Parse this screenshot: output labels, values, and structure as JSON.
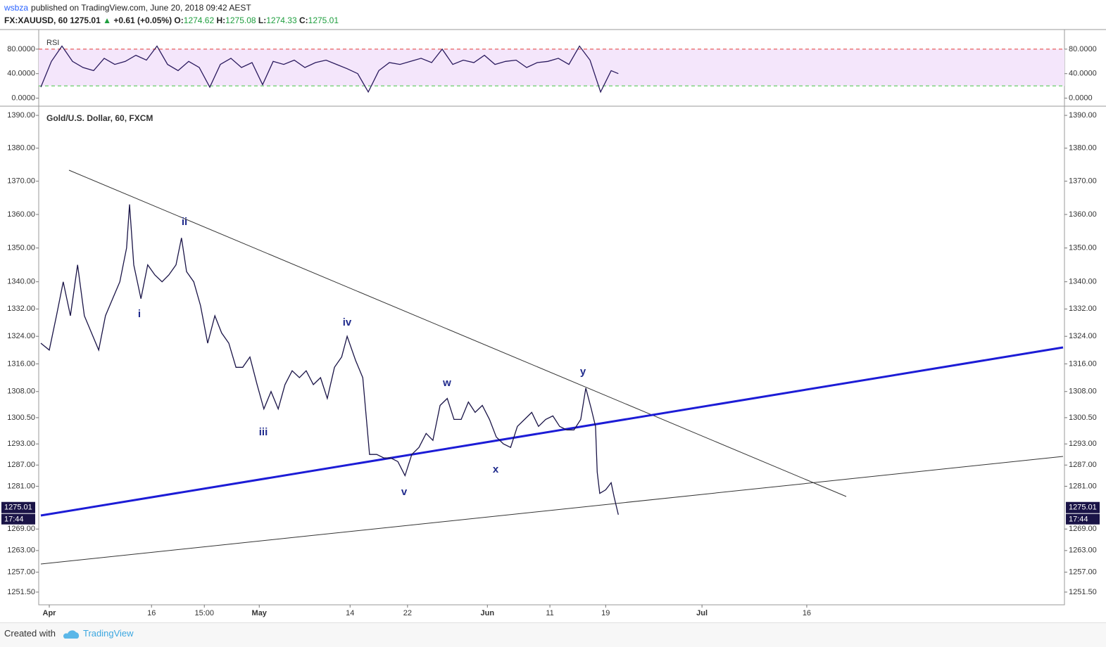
{
  "header": {
    "author": "wsbza",
    "published": "published on TradingView.com, June 20, 2018 09:42 AEST",
    "symbol": "FX:XAUUSD, 60",
    "last": "1275.01",
    "arrow": "▲",
    "change": "+0.61 (+0.05%)",
    "ohlc": [
      {
        "label": "O:",
        "value": "1274.62"
      },
      {
        "label": "H:",
        "value": "1275.08"
      },
      {
        "label": "L:",
        "value": "1274.33"
      },
      {
        "label": "C:",
        "value": "1275.01"
      }
    ]
  },
  "chart_data": [
    {
      "type": "line",
      "title": "RSI",
      "color": "#2a1a5e",
      "x": [
        5,
        30,
        55,
        80,
        105,
        130,
        155,
        180,
        205,
        230,
        255,
        280,
        305,
        330,
        355,
        380,
        405,
        430,
        455,
        480,
        505,
        530,
        555,
        580,
        605,
        630,
        655,
        680,
        705,
        730,
        755,
        780,
        805,
        830,
        855,
        880,
        905,
        930,
        955,
        980,
        1005,
        1030,
        1055,
        1080,
        1105,
        1130,
        1155,
        1180,
        1205,
        1230,
        1255,
        1280,
        1305,
        1330,
        1355,
        1372
      ],
      "values": [
        18,
        60,
        85,
        60,
        50,
        45,
        65,
        55,
        60,
        70,
        62,
        85,
        55,
        45,
        60,
        50,
        18,
        55,
        65,
        50,
        58,
        22,
        60,
        55,
        62,
        50,
        58,
        62,
        55,
        48,
        40,
        10,
        45,
        58,
        55,
        60,
        65,
        58,
        80,
        55,
        62,
        58,
        70,
        55,
        60,
        62,
        50,
        58,
        60,
        65,
        55,
        85,
        62,
        10,
        45,
        40
      ],
      "xlim": [
        0,
        2428
      ],
      "ylim": [
        -12,
        112
      ],
      "yticks": [
        {
          "value": 80,
          "label": "80.0000"
        },
        {
          "value": 40,
          "label": "40.0000"
        },
        {
          "value": 0,
          "label": "0.0000"
        }
      ],
      "upper_band": 80,
      "lower_band": 20,
      "upper_color": "#e53935",
      "lower_color": "#43c443",
      "band_fill": "#f4e6fb"
    },
    {
      "type": "line",
      "title": "Gold/U.S. Dollar, 60, FXCM",
      "color": "#1a1447",
      "log_scale": true,
      "x": [
        5,
        25,
        42,
        58,
        75,
        92,
        108,
        125,
        142,
        158,
        175,
        192,
        208,
        215,
        225,
        242,
        258,
        275,
        292,
        308,
        325,
        338,
        350,
        367,
        383,
        400,
        417,
        433,
        450,
        467,
        483,
        500,
        517,
        533,
        550,
        567,
        583,
        600,
        617,
        633,
        650,
        667,
        683,
        700,
        717,
        730,
        750,
        767,
        783,
        800,
        817,
        833,
        850,
        867,
        883,
        900,
        917,
        933,
        950,
        967,
        983,
        1000,
        1017,
        1033,
        1050,
        1067,
        1083,
        1100,
        1117,
        1133,
        1150,
        1167,
        1183,
        1200,
        1217,
        1233,
        1250,
        1267,
        1283,
        1295,
        1308,
        1318,
        1322,
        1328,
        1342,
        1355,
        1362,
        1372
      ],
      "values": [
        1322,
        1320,
        1330,
        1340,
        1330,
        1345,
        1330,
        1325,
        1320,
        1330,
        1335,
        1340,
        1350,
        1363,
        1345,
        1335,
        1345,
        1342,
        1340,
        1342,
        1345,
        1353,
        1343,
        1340,
        1333,
        1322,
        1330,
        1325,
        1322,
        1315,
        1315,
        1318,
        1310,
        1303,
        1308,
        1303,
        1310,
        1314,
        1312,
        1314,
        1310,
        1312,
        1306,
        1315,
        1318,
        1324,
        1317,
        1312,
        1290,
        1290,
        1289,
        1289,
        1288,
        1284,
        1290,
        1292,
        1296,
        1294,
        1304,
        1306,
        1300,
        1300,
        1305,
        1302,
        1304,
        1300,
        1295,
        1293,
        1292,
        1298,
        1300,
        1302,
        1298,
        1300,
        1301,
        1298,
        1297,
        1297,
        1300,
        1309,
        1303,
        1298,
        1285,
        1279,
        1280,
        1282,
        1278,
        1273
      ],
      "xlim": [
        0,
        2428
      ],
      "ylim": [
        1248,
        1392.6
      ],
      "xticks": [
        {
          "value": 25,
          "label": "Apr"
        },
        {
          "value": 267,
          "label": "16"
        },
        {
          "value": 392,
          "label": "15:00"
        },
        {
          "value": 522,
          "label": "May"
        },
        {
          "value": 737,
          "label": "14"
        },
        {
          "value": 873,
          "label": "22"
        },
        {
          "value": 1062,
          "label": "Jun"
        },
        {
          "value": 1210,
          "label": "11"
        },
        {
          "value": 1342,
          "label": "19"
        },
        {
          "value": 1570,
          "label": "Jul"
        },
        {
          "value": 1818,
          "label": "16"
        }
      ],
      "yticks": [
        {
          "value": 1390,
          "label": "1390.00"
        },
        {
          "value": 1380,
          "label": "1380.00"
        },
        {
          "value": 1370,
          "label": "1370.00"
        },
        {
          "value": 1360,
          "label": "1360.00"
        },
        {
          "value": 1350,
          "label": "1350.00"
        },
        {
          "value": 1340,
          "label": "1340.00"
        },
        {
          "value": 1332,
          "label": "1332.00"
        },
        {
          "value": 1324,
          "label": "1324.00"
        },
        {
          "value": 1316,
          "label": "1316.00"
        },
        {
          "value": 1308,
          "label": "1308.00"
        },
        {
          "value": 1300.5,
          "label": "1300.50"
        },
        {
          "value": 1293,
          "label": "1293.00"
        },
        {
          "value": 1287,
          "label": "1287.00"
        },
        {
          "value": 1281,
          "label": "1281.00"
        },
        {
          "value": 1269,
          "label": "1269.00"
        },
        {
          "value": 1263,
          "label": "1263.00"
        },
        {
          "value": 1257,
          "label": "1257.00"
        },
        {
          "value": 1251.5,
          "label": "1251.50"
        }
      ],
      "last_price": 1275.01,
      "countdown": "17:44",
      "wave_labels": [
        "i",
        "ii",
        "iii",
        "iv",
        "v",
        "w",
        "x",
        "y"
      ]
    }
  ],
  "footer": {
    "created": "Created with",
    "brand": "TradingView"
  }
}
